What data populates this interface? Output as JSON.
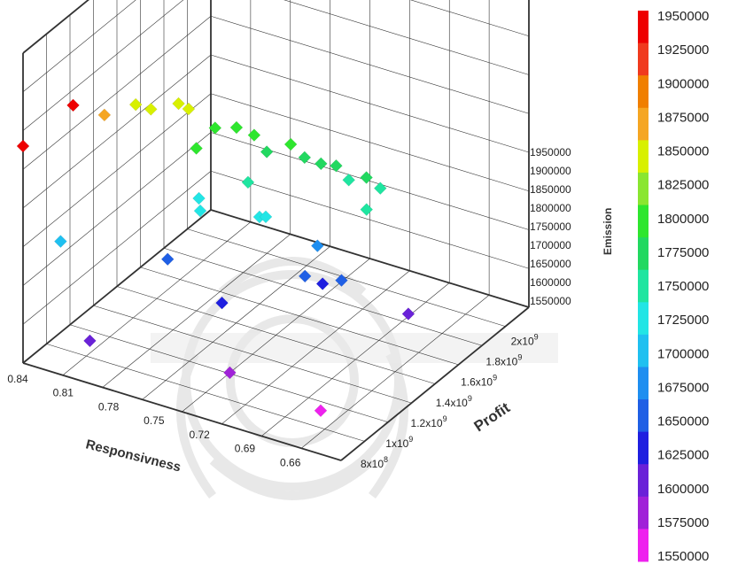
{
  "chart_data": {
    "type": "scatter",
    "title": "",
    "xlabel": "Responsivness",
    "ylabel": "Profit",
    "zlabel": "Emission",
    "x_ticks": [
      "0.84",
      "0.81",
      "0.78",
      "0.75",
      "0.72",
      "0.69",
      "0.66"
    ],
    "y_ticks_base": [
      "8x10",
      "1x10",
      "1.2x10",
      "1.4x10",
      "1.6x10",
      "1.8x10",
      "2x10"
    ],
    "y_ticks_exp": [
      "8",
      "9",
      "9",
      "9",
      "9",
      "9",
      "9"
    ],
    "z_ticks": [
      "1950000",
      "1900000",
      "1850000",
      "1800000",
      "1750000",
      "1700000",
      "1650000",
      "1600000",
      "1550000"
    ],
    "colorbar_ticks": [
      "1950000",
      "1925000",
      "1900000",
      "1875000",
      "1850000",
      "1825000",
      "1800000",
      "1775000",
      "1750000",
      "1725000",
      "1700000",
      "1675000",
      "1650000",
      "1625000",
      "1600000",
      "1575000",
      "1550000"
    ],
    "colorbar_colors": [
      "#ee0000",
      "#f03a1e",
      "#f07f00",
      "#f5a623",
      "#d8f000",
      "#8ae630",
      "#2ee62e",
      "#22d860",
      "#1fe5a0",
      "#22e5e5",
      "#1fc0f0",
      "#1e8ef0",
      "#1f5fe5",
      "#1f1fe0",
      "#6a22d8",
      "#a022d8",
      "#ee22ee"
    ],
    "zlim": [
      1550000,
      1950000
    ],
    "grid": true,
    "legend": "colorbar right",
    "points": [
      {
        "x": 0.84,
        "y": 800000000.0,
        "z": 1950000
      },
      {
        "x": 0.84,
        "y": 1200000000.0,
        "z": 1950000
      },
      {
        "x": 0.84,
        "y": 1450000000.0,
        "z": 1880000
      },
      {
        "x": 0.84,
        "y": 1700000000.0,
        "z": 1850000
      },
      {
        "x": 0.83,
        "y": 1700000000.0,
        "z": 1850000
      },
      {
        "x": 0.82,
        "y": 1800000000.0,
        "z": 1850000
      },
      {
        "x": 0.815,
        "y": 1820000000.0,
        "z": 1840000
      },
      {
        "x": 0.8,
        "y": 1850000000.0,
        "z": 1810000
      },
      {
        "x": 0.79,
        "y": 1900000000.0,
        "z": 1810000
      },
      {
        "x": 0.78,
        "y": 1920000000.0,
        "z": 1800000
      },
      {
        "x": 0.77,
        "y": 1900000000.0,
        "z": 1780000
      },
      {
        "x": 0.8,
        "y": 1700000000.0,
        "z": 1800000
      },
      {
        "x": 0.76,
        "y": 1970000000.0,
        "z": 1790000
      },
      {
        "x": 0.75,
        "y": 1960000000.0,
        "z": 1775000
      },
      {
        "x": 0.74,
        "y": 1970000000.0,
        "z": 1770000
      },
      {
        "x": 0.73,
        "y": 1970000000.0,
        "z": 1775000
      },
      {
        "x": 0.72,
        "y": 1950000000.0,
        "z": 1760000
      },
      {
        "x": 0.71,
        "y": 1970000000.0,
        "z": 1770000
      },
      {
        "x": 0.7,
        "y": 1960000000.0,
        "z": 1760000
      },
      {
        "x": 0.77,
        "y": 1750000000.0,
        "z": 1750000
      },
      {
        "x": 0.79,
        "y": 1600000000.0,
        "z": 1730000
      },
      {
        "x": 0.785,
        "y": 1550000000.0,
        "z": 1720000
      },
      {
        "x": 0.7,
        "y": 1850000000.0,
        "z": 1740000
      },
      {
        "x": 0.75,
        "y": 1600000000.0,
        "z": 1730000
      },
      {
        "x": 0.75,
        "y": 1650000000.0,
        "z": 1720000
      },
      {
        "x": 0.72,
        "y": 1700000000.0,
        "z": 1680000
      },
      {
        "x": 0.79,
        "y": 1350000000.0,
        "z": 1660000
      },
      {
        "x": 0.72,
        "y": 1600000000.0,
        "z": 1640000
      },
      {
        "x": 0.71,
        "y": 1620000000.0,
        "z": 1630000
      },
      {
        "x": 0.7,
        "y": 1650000000.0,
        "z": 1640000
      },
      {
        "x": 0.84,
        "y": 1100000000.0,
        "z": 1700000
      },
      {
        "x": 0.75,
        "y": 1300000000.0,
        "z": 1620000
      },
      {
        "x": 0.66,
        "y": 1700000000.0,
        "z": 1600000
      },
      {
        "x": 0.72,
        "y": 1000000000.0,
        "z": 1570000
      },
      {
        "x": 0.8,
        "y": 850000000.0,
        "z": 1590000
      },
      {
        "x": 0.66,
        "y": 1000000000.0,
        "z": 1550000
      }
    ]
  }
}
